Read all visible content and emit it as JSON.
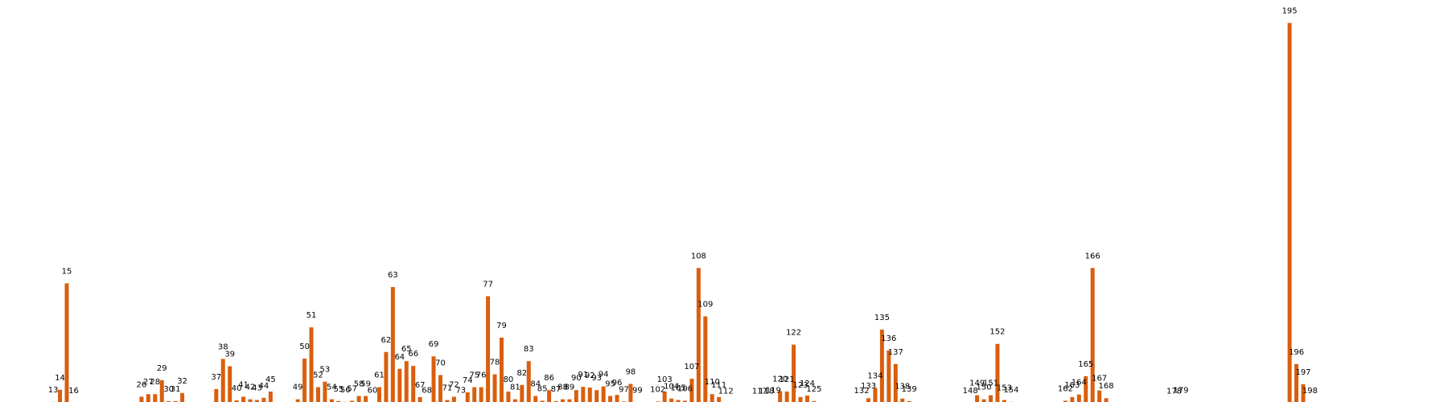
{
  "chart_data": {
    "type": "bar",
    "title": "",
    "xlabel": "",
    "ylabel": "",
    "grid": false,
    "legend": "none",
    "color": "#d95f0e",
    "x_range": [
      6,
      205
    ],
    "ylim": [
      0,
      10.5
    ],
    "bars": [
      {
        "x": 13,
        "label": "13",
        "value": 0.07
      },
      {
        "x": 14,
        "label": "14",
        "value": 0.4
      },
      {
        "x": 15,
        "label": "15",
        "value": 3.3
      },
      {
        "x": 16,
        "label": "16",
        "value": 0.04
      },
      {
        "x": 26,
        "label": "26",
        "value": 0.21
      },
      {
        "x": 27,
        "label": "27",
        "value": 0.28
      },
      {
        "x": 28,
        "label": "28",
        "value": 0.28
      },
      {
        "x": 29,
        "label": "29",
        "value": 0.66
      },
      {
        "x": 30,
        "label": "30",
        "value": 0.09
      },
      {
        "x": 31,
        "label": "31",
        "value": 0.09
      },
      {
        "x": 32,
        "label": "32",
        "value": 0.31
      },
      {
        "x": 37,
        "label": "37",
        "value": 0.42
      },
      {
        "x": 38,
        "label": "38",
        "value": 1.24
      },
      {
        "x": 39,
        "label": "39",
        "value": 1.04
      },
      {
        "x": 40,
        "label": "40",
        "value": 0.11
      },
      {
        "x": 41,
        "label": "41",
        "value": 0.21
      },
      {
        "x": 42,
        "label": "42",
        "value": 0.14
      },
      {
        "x": 43,
        "label": "43",
        "value": 0.12
      },
      {
        "x": 44,
        "label": "44",
        "value": 0.18
      },
      {
        "x": 45,
        "label": "45",
        "value": 0.35
      },
      {
        "x": 49,
        "label": "49",
        "value": 0.14
      },
      {
        "x": 50,
        "label": "50",
        "value": 1.25
      },
      {
        "x": 51,
        "label": "51",
        "value": 2.1
      },
      {
        "x": 52,
        "label": "52",
        "value": 0.47
      },
      {
        "x": 53,
        "label": "53",
        "value": 0.62
      },
      {
        "x": 54,
        "label": "54",
        "value": 0.14
      },
      {
        "x": 55,
        "label": "55",
        "value": 0.09
      },
      {
        "x": 56,
        "label": "56",
        "value": 0.07
      },
      {
        "x": 57,
        "label": "57",
        "value": 0.1
      },
      {
        "x": 58,
        "label": "58",
        "value": 0.23
      },
      {
        "x": 59,
        "label": "59",
        "value": 0.23
      },
      {
        "x": 60,
        "label": "60",
        "value": 0.06
      },
      {
        "x": 61,
        "label": "61",
        "value": 0.47
      },
      {
        "x": 62,
        "label": "62",
        "value": 1.43
      },
      {
        "x": 63,
        "label": "63",
        "value": 3.2
      },
      {
        "x": 64,
        "label": "64",
        "value": 0.97
      },
      {
        "x": 65,
        "label": "65",
        "value": 1.18
      },
      {
        "x": 66,
        "label": "66",
        "value": 1.05
      },
      {
        "x": 67,
        "label": "67",
        "value": 0.2
      },
      {
        "x": 68,
        "label": "68",
        "value": 0.06
      },
      {
        "x": 69,
        "label": "69",
        "value": 1.31
      },
      {
        "x": 70,
        "label": "70",
        "value": 0.8
      },
      {
        "x": 71,
        "label": "71",
        "value": 0.12
      },
      {
        "x": 72,
        "label": "72",
        "value": 0.21
      },
      {
        "x": 73,
        "label": "73",
        "value": 0.06
      },
      {
        "x": 74,
        "label": "74",
        "value": 0.33
      },
      {
        "x": 75,
        "label": "75",
        "value": 0.47
      },
      {
        "x": 76,
        "label": "76",
        "value": 0.47
      },
      {
        "x": 77,
        "label": "77",
        "value": 2.95
      },
      {
        "x": 78,
        "label": "78",
        "value": 0.82
      },
      {
        "x": 79,
        "label": "79",
        "value": 1.82
      },
      {
        "x": 80,
        "label": "80",
        "value": 0.35
      },
      {
        "x": 81,
        "label": "81",
        "value": 0.14
      },
      {
        "x": 82,
        "label": "82",
        "value": 0.53
      },
      {
        "x": 83,
        "label": "83",
        "value": 1.18
      },
      {
        "x": 84,
        "label": "84",
        "value": 0.23
      },
      {
        "x": 85,
        "label": "85",
        "value": 0.1
      },
      {
        "x": 86,
        "label": "86",
        "value": 0.39
      },
      {
        "x": 87,
        "label": "87",
        "value": 0.09
      },
      {
        "x": 88,
        "label": "88",
        "value": 0.14
      },
      {
        "x": 89,
        "label": "89",
        "value": 0.14
      },
      {
        "x": 90,
        "label": "90",
        "value": 0.39
      },
      {
        "x": 91,
        "label": "91",
        "value": 0.48
      },
      {
        "x": 92,
        "label": "92",
        "value": 0.46
      },
      {
        "x": 93,
        "label": "93",
        "value": 0.39
      },
      {
        "x": 94,
        "label": "94",
        "value": 0.49
      },
      {
        "x": 95,
        "label": "95",
        "value": 0.23
      },
      {
        "x": 96,
        "label": "96",
        "value": 0.26
      },
      {
        "x": 97,
        "label": "97",
        "value": 0.08
      },
      {
        "x": 98,
        "label": "98",
        "value": 0.56
      },
      {
        "x": 99,
        "label": "99",
        "value": 0.05
      },
      {
        "x": 102,
        "label": "102",
        "value": 0.08
      },
      {
        "x": 103,
        "label": "103",
        "value": 0.35
      },
      {
        "x": 104,
        "label": "104",
        "value": 0.16
      },
      {
        "x": 105,
        "label": "105",
        "value": 0.12
      },
      {
        "x": 106,
        "label": "106",
        "value": 0.1
      },
      {
        "x": 107,
        "label": "107",
        "value": 0.7
      },
      {
        "x": 108,
        "label": "108",
        "value": 3.72
      },
      {
        "x": 109,
        "label": "109",
        "value": 2.4
      },
      {
        "x": 110,
        "label": "110",
        "value": 0.28
      },
      {
        "x": 111,
        "label": "111",
        "value": 0.2
      },
      {
        "x": 112,
        "label": "112",
        "value": 0.03
      },
      {
        "x": 117,
        "label": "117",
        "value": 0.03
      },
      {
        "x": 118,
        "label": "118",
        "value": 0.03
      },
      {
        "x": 119,
        "label": "119",
        "value": 0.06
      },
      {
        "x": 120,
        "label": "120",
        "value": 0.36
      },
      {
        "x": 121,
        "label": "121",
        "value": 0.35
      },
      {
        "x": 122,
        "label": "122",
        "value": 1.63
      },
      {
        "x": 123,
        "label": "123",
        "value": 0.2
      },
      {
        "x": 124,
        "label": "124",
        "value": 0.24
      },
      {
        "x": 125,
        "label": "125",
        "value": 0.09
      },
      {
        "x": 132,
        "label": "132",
        "value": 0.04
      },
      {
        "x": 133,
        "label": "133",
        "value": 0.17
      },
      {
        "x": 134,
        "label": "134",
        "value": 0.45
      },
      {
        "x": 135,
        "label": "135",
        "value": 2.04
      },
      {
        "x": 136,
        "label": "136",
        "value": 1.47
      },
      {
        "x": 137,
        "label": "137",
        "value": 1.1
      },
      {
        "x": 138,
        "label": "138",
        "value": 0.16
      },
      {
        "x": 139,
        "label": "139",
        "value": 0.09
      },
      {
        "x": 148,
        "label": "148",
        "value": 0.04
      },
      {
        "x": 149,
        "label": "149",
        "value": 0.25
      },
      {
        "x": 150,
        "label": "150",
        "value": 0.14
      },
      {
        "x": 151,
        "label": "151",
        "value": 0.25
      },
      {
        "x": 152,
        "label": "152",
        "value": 1.65
      },
      {
        "x": 153,
        "label": "153",
        "value": 0.12
      },
      {
        "x": 154,
        "label": "154",
        "value": 0.07
      },
      {
        "x": 162,
        "label": "162",
        "value": 0.1
      },
      {
        "x": 163,
        "label": "163",
        "value": 0.2
      },
      {
        "x": 164,
        "label": "164",
        "value": 0.27
      },
      {
        "x": 165,
        "label": "165",
        "value": 0.77
      },
      {
        "x": 166,
        "label": "166",
        "value": 3.72
      },
      {
        "x": 167,
        "label": "167",
        "value": 0.38
      },
      {
        "x": 168,
        "label": "168",
        "value": 0.17
      },
      {
        "x": 178,
        "label": "178",
        "value": 0.03
      },
      {
        "x": 179,
        "label": "179",
        "value": 0.06
      },
      {
        "x": 195,
        "label": "195",
        "value": 10.4
      },
      {
        "x": 196,
        "label": "196",
        "value": 1.1
      },
      {
        "x": 197,
        "label": "197",
        "value": 0.55
      },
      {
        "x": 198,
        "label": "198",
        "value": 0.04
      }
    ]
  }
}
